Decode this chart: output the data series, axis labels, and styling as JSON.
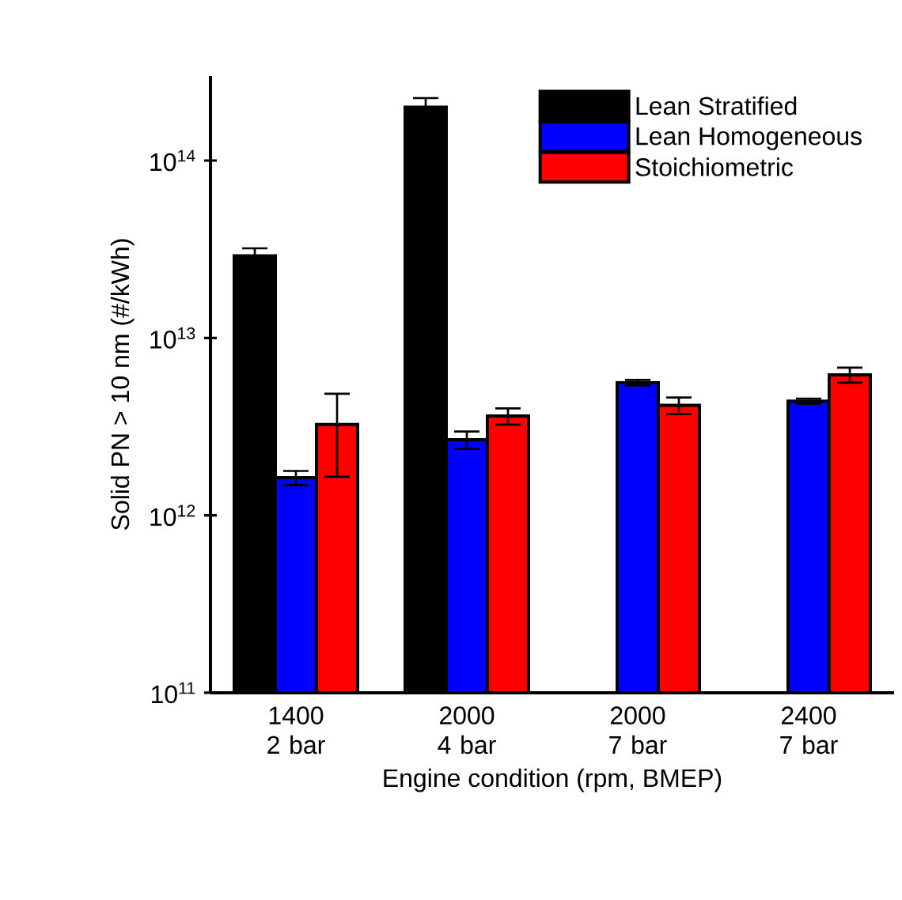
{
  "chart_data": {
    "type": "bar",
    "xlabel": "Engine condition (rpm, BMEP)",
    "ylabel": "Solid PN > 10 nm (#/kWh)",
    "categories": [
      "1400 2 bar",
      "2000 4 bar",
      "2000 7 bar",
      "2400 7 bar"
    ],
    "series": [
      {
        "name": "Lean Stratified",
        "color": "#000000",
        "values": [
          29000000000000.0,
          200000000000000.0,
          null,
          null
        ],
        "errors": [
          3000000000000.0,
          25000000000000.0,
          null,
          null
        ]
      },
      {
        "name": "Lean Homogeneous",
        "color": "#0000ff",
        "values": [
          1630000000000.0,
          2670000000000.0,
          5600000000000.0,
          4400000000000.0
        ],
        "errors": [
          150000000000.0,
          300000000000.0,
          200000000000.0,
          150000000000.0
        ]
      },
      {
        "name": "Stoichiometric",
        "color": "#ff0000",
        "values": [
          3250000000000.0,
          3630000000000.0,
          4170000000000.0,
          6200000000000.0
        ],
        "errors": [
          1600000000000.0,
          380000000000.0,
          450000000000.0,
          600000000000.0
        ]
      }
    ],
    "log": "y",
    "ylim": [
      100000000000.0,
      300000000000000.0
    ],
    "yticks": [
      {
        "value": 100000000000.0,
        "label": "10$^{11}$"
      },
      {
        "value": 1000000000000.0,
        "label": "10$^{12}$"
      },
      {
        "value": 10000000000000.0,
        "label": "10$^{13}$"
      },
      {
        "value": 100000000000000.0,
        "label": "10$^{14}$"
      }
    ],
    "legend": "top right",
    "grid": false
  }
}
